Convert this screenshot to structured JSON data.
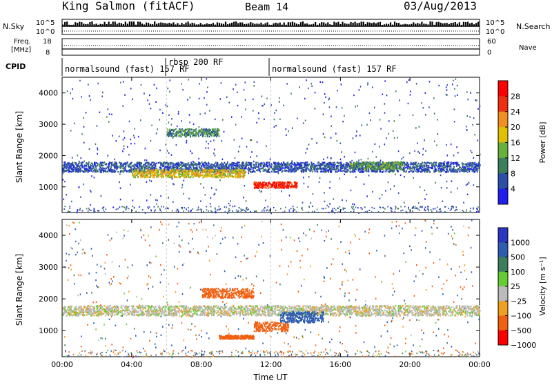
{
  "header": {
    "station": "King Salmon (fitACF)",
    "beam": "Beam 14",
    "date": "03/Aug/2013"
  },
  "top_panel": {
    "left_label": "N.Sky",
    "right_label": "N.Search",
    "tick_top": "10^5",
    "tick_bottom": "10^0"
  },
  "freq_panel": {
    "left_label_1": "Freq.",
    "left_label_2": "[MHz]",
    "right_label": "Nave",
    "left_ticks": [
      "18",
      "8"
    ],
    "right_ticks": [
      "60",
      "0"
    ]
  },
  "cpid": {
    "label": "CPID",
    "segments": [
      {
        "name": "normalsound (fast) 157 RF",
        "start": "00:00",
        "end": "06:00"
      },
      {
        "name": "rbsp 200 RF",
        "start": "06:00",
        "end": "12:00"
      },
      {
        "name": "normalsound (fast) 157 RF",
        "start": "12:00",
        "end": "24:00"
      }
    ],
    "extra_label": "157 RF"
  },
  "chart_data": [
    {
      "type": "heatmap",
      "name": "power-panel",
      "ylabel": "Slant Range [km]",
      "yticks": [
        "1000",
        "2000",
        "3000",
        "4000"
      ],
      "ylim": [
        180,
        4500
      ],
      "colorbar_label": "Power [dB]",
      "colorbar_ticks": [
        "4",
        "8",
        "12",
        "16",
        "20",
        "24",
        "28"
      ],
      "colors": [
        "#2020ee",
        "#2d4ea8",
        "#3c7d5c",
        "#69b03a",
        "#e0c000",
        "#f09020",
        "#ee3010",
        "#ff0000"
      ],
      "bands": [
        {
          "x": [
            0,
            24
          ],
          "y_center": 1650,
          "y_width": 320,
          "value": 6
        },
        {
          "x": [
            4,
            10.5
          ],
          "y_center": 1450,
          "y_width": 260,
          "value": 18
        },
        {
          "x": [
            11,
            13.5
          ],
          "y_center": 1080,
          "y_width": 200,
          "value": 28
        },
        {
          "x": [
            6,
            9
          ],
          "y_center": 2750,
          "y_width": 250,
          "value": 10
        },
        {
          "x": [
            16.5,
            19.5
          ],
          "y_center": 1700,
          "y_width": 250,
          "value": 12
        }
      ]
    },
    {
      "type": "heatmap",
      "name": "velocity-panel",
      "ylabel": "Slant Range [km]",
      "xlabel": "Time UT",
      "yticks": [
        "1000",
        "2000",
        "3000",
        "4000"
      ],
      "ylim": [
        180,
        4500
      ],
      "xticks": [
        "00:00",
        "04:00",
        "08:00",
        "12:00",
        "16:00",
        "20:00",
        "00:00"
      ],
      "xlim": [
        0,
        24
      ],
      "colorbar_label": "Velocity [m s⁻¹]",
      "colorbar_ticks": [
        "1000",
        "500",
        "100",
        "25",
        "−25",
        "−100",
        "−500",
        "−1000"
      ],
      "colors": [
        "#2a36c0",
        "#2d5cb0",
        "#3c7d5c",
        "#66cc33",
        "#bbbbbb",
        "#f0a020",
        "#f06010",
        "#ff0000"
      ],
      "bands": [
        {
          "x": [
            0,
            24
          ],
          "y_center": 1650,
          "y_width": 320,
          "value": 0
        },
        {
          "x": [
            11,
            13
          ],
          "y_center": 1150,
          "y_width": 300,
          "value": -300
        },
        {
          "x": [
            12.5,
            15
          ],
          "y_center": 1450,
          "y_width": 350,
          "value": 200
        },
        {
          "x": [
            8,
            11
          ],
          "y_center": 2200,
          "y_width": 300,
          "value": -150
        },
        {
          "x": [
            9,
            11
          ],
          "y_center": 820,
          "y_width": 120,
          "value": -200
        }
      ]
    }
  ]
}
